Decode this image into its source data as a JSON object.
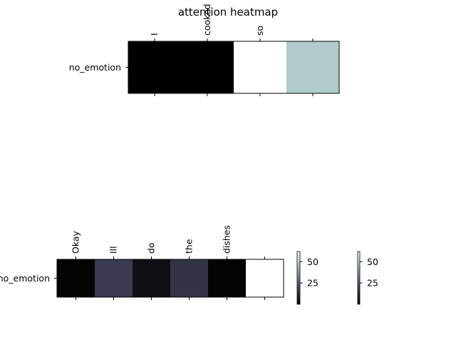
{
  "figure": {
    "title": "attention heatmap"
  },
  "colormap": "bone",
  "chart_data": [
    {
      "type": "heatmap",
      "ylabels": [
        "no_emotion"
      ],
      "xlabels": [
        "I",
        "cooked",
        "so",
        ""
      ],
      "values": [
        0,
        0,
        62,
        48
      ],
      "vmin": 0,
      "vmax": 62
    },
    {
      "type": "heatmap",
      "ylabels": [
        "no_emotion"
      ],
      "xlabels": [
        "Okay",
        "Ill",
        "do",
        "the",
        "dishes",
        ""
      ],
      "values": [
        1,
        16,
        4,
        14,
        1,
        62
      ],
      "vmin": 0,
      "vmax": 62
    }
  ],
  "colorbars": [
    {
      "ticks": [
        25,
        50
      ],
      "min": 0,
      "max": 62
    },
    {
      "ticks": [
        25,
        50
      ],
      "min": 0,
      "max": 62
    }
  ]
}
